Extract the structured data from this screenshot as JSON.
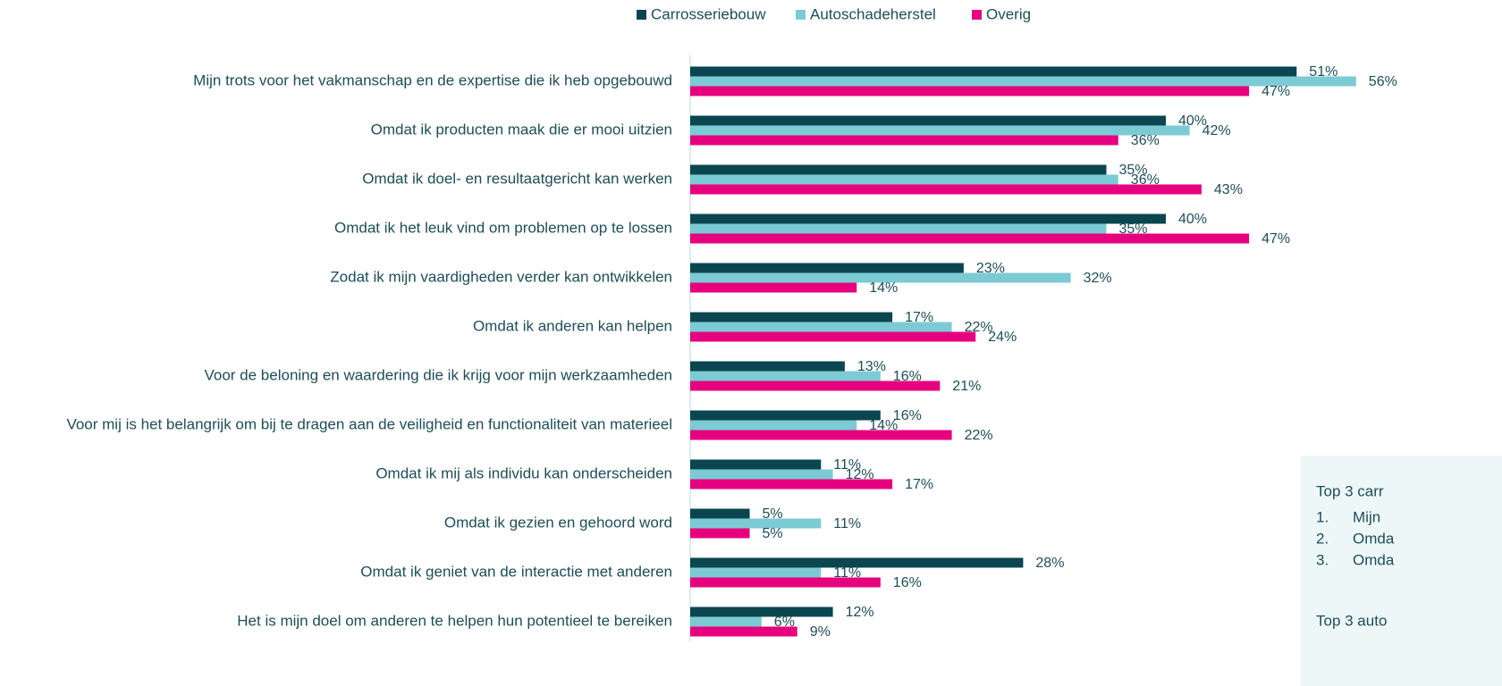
{
  "chart_data": {
    "type": "bar",
    "orientation": "horizontal",
    "categories": [
      "Mijn trots voor het vakmanschap en de expertise die ik heb opgebouwd",
      "Omdat ik producten maak die er mooi uitzien",
      "Omdat ik doel- en resultaatgericht kan werken",
      "Omdat ik het leuk vind om problemen op te lossen",
      "Zodat ik mijn vaardigheden verder kan ontwikkelen",
      "Omdat ik anderen kan helpen",
      "Voor de beloning en waardering die ik krijg voor mijn werkzaamheden",
      "Voor mij is het belangrijk om bij te dragen aan de veiligheid en functionaliteit van materieel",
      "Omdat ik mij als individu kan onderscheiden",
      "Omdat ik gezien en gehoord word",
      "Omdat ik geniet van de interactie met anderen",
      "Het is mijn doel om anderen te helpen hun potentieel te bereiken"
    ],
    "series": [
      {
        "name": "Carrosseriebouw",
        "color": "#0b4650",
        "values": [
          51,
          40,
          35,
          40,
          23,
          17,
          13,
          16,
          11,
          5,
          28,
          12
        ],
        "value_labels": [
          "51%",
          "40%",
          "35%",
          "40%",
          "23%",
          "17%",
          "13%",
          "16%",
          "11%",
          "5%",
          "28%",
          "12%"
        ]
      },
      {
        "name": "Autoschadeherstel",
        "color": "#7ccbd4",
        "values": [
          56,
          42,
          36,
          35,
          32,
          22,
          16,
          14,
          12,
          11,
          11,
          6
        ],
        "value_labels": [
          "56%",
          "42%",
          "36%",
          "35%",
          "32%",
          "22%",
          "16%",
          "14%",
          "12%",
          "11%",
          "11%",
          "6%"
        ]
      },
      {
        "name": "Overig",
        "color": "#e6007e",
        "values": [
          47,
          36,
          43,
          47,
          14,
          24,
          21,
          22,
          17,
          5,
          16,
          9
        ],
        "value_labels": [
          "47%",
          "36%",
          "43%",
          "47%",
          "14%",
          "24%",
          "21%",
          "22%",
          "17%",
          "5%",
          "16%",
          "9%"
        ]
      }
    ],
    "xlim": [
      0,
      60
    ],
    "legend": "top"
  },
  "text_box": {
    "title": "Top 3 carr",
    "items": [
      {
        "number": "1.",
        "text": "Mijn"
      },
      {
        "number": "2.",
        "text": "Omda"
      },
      {
        "number": "3.",
        "text": "Omda"
      }
    ],
    "title2": "Top 3 auto"
  }
}
